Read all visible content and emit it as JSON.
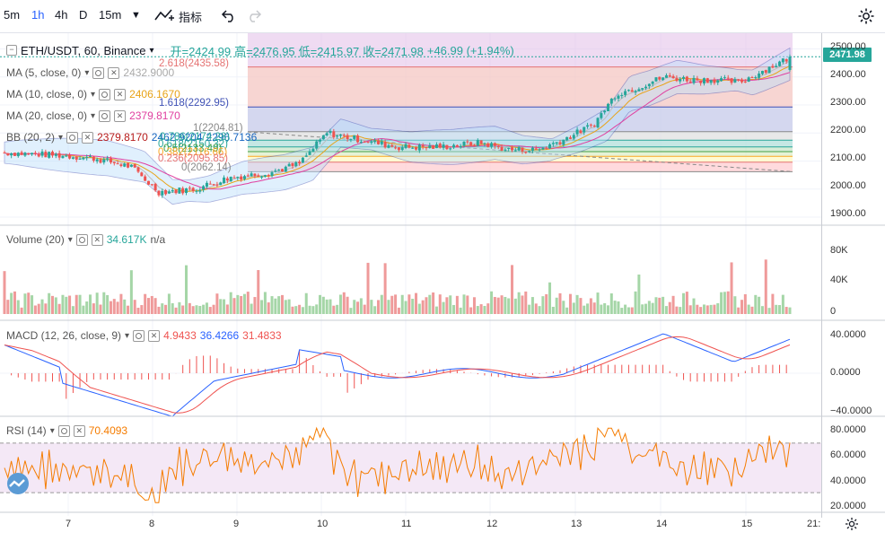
{
  "toolbar": {
    "intervals": [
      "5m",
      "1h",
      "4h",
      "D",
      "15m"
    ],
    "active_interval": "1h",
    "indicators_label": "指标"
  },
  "symbol_header": {
    "symbol": "ETH/USDT, 60, Binance",
    "open_label": "开=2424.99",
    "high_label": "高=2476.95",
    "low_label": "低=2415.97",
    "close_label": "收=2471.98",
    "change_label": "+46.99 (+1.94%)"
  },
  "overlays": [
    {
      "name": "MA (5, close, 0)",
      "value": "2432.9000",
      "color": "#aaaaaa"
    },
    {
      "name": "MA (10, close, 0)",
      "value": "2406.1670",
      "color": "#e8a317"
    },
    {
      "name": "MA (20, close, 0)",
      "value": "2379.8170",
      "color": "#e040a0"
    },
    {
      "name": "BB (20, 2)",
      "value": "2379.8170",
      "value2": "2462.9204",
      "value3": "2296.7136",
      "color": "#b71c1c"
    }
  ],
  "fib_levels": [
    {
      "label": "2.618(2435.58)",
      "price": 2435.58,
      "color": "#e57373"
    },
    {
      "label": "1.618(2292.95)",
      "price": 2292.95,
      "color": "#3f51b5"
    },
    {
      "label": "1(2204.81)",
      "price": 2204.81,
      "color": "#888888"
    },
    {
      "label": "0.786(2174.28)",
      "price": 2174.28,
      "color": "#26a69a"
    },
    {
      "label": "0.618(2150.32)",
      "price": 2150.32,
      "color": "#26a69a"
    },
    {
      "label": "0.5(2133.49)",
      "price": 2133.49,
      "color": "#43a047"
    },
    {
      "label": "0.382(2116.66)",
      "price": 2116.66,
      "color": "#f9a825"
    },
    {
      "label": "0.236(2095.85)",
      "price": 2095.85,
      "color": "#e57373"
    },
    {
      "label": "0(2062.14)",
      "price": 2062.14,
      "color": "#888888"
    }
  ],
  "price_axis": {
    "ticks": [
      "2500.00",
      "2400.00",
      "2300.00",
      "2200.00",
      "2100.00",
      "2000.00",
      "1900.00"
    ],
    "last_price": "2471.98"
  },
  "volume": {
    "name": "Volume (20)",
    "value": "34.617K",
    "value2": "n/a",
    "ticks": [
      "80K",
      "40K",
      "0"
    ]
  },
  "macd": {
    "name": "MACD (12, 26, close, 9)",
    "hist": "4.9433",
    "macd": "36.4266",
    "signal": "31.4833",
    "ticks": [
      "40.0000",
      "0.0000",
      "−40.0000"
    ]
  },
  "rsi": {
    "name": "RSI (14)",
    "value": "70.4093",
    "ticks": [
      "80.0000",
      "60.0000",
      "40.0000",
      "20.0000"
    ]
  },
  "time_axis": {
    "ticks": [
      "7",
      "8",
      "9",
      "10",
      "11",
      "12",
      "13",
      "14",
      "15",
      "21:"
    ]
  },
  "colors": {
    "up": "#26a69a",
    "down": "#ef5350",
    "vol_up": "#a5d6a7",
    "vol_down": "#ef9a9a",
    "macd_line": "#2962ff",
    "signal_line": "#ef5350",
    "rsi_line": "#f57c00"
  }
}
